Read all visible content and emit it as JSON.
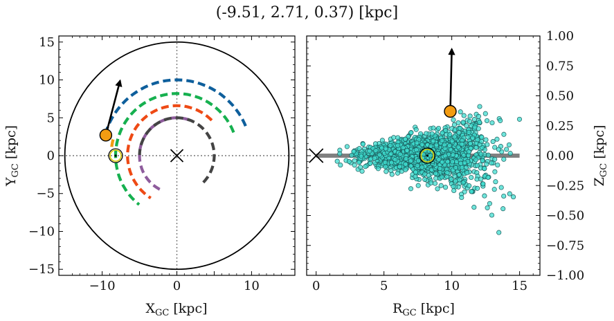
{
  "figure_title": "(-9.51, 2.71, 0.37) [kpc]",
  "chart_data": [
    {
      "type": "scatter",
      "panel": "left",
      "xlabel_main": "X",
      "xlabel_sub": "GC",
      "xlabel_unit": " [kpc]",
      "ylabel_main": "Y",
      "ylabel_sub": "GC",
      "ylabel_unit": " [kpc]",
      "xlim": [
        -15.8,
        15.8
      ],
      "ylim": [
        -15.8,
        15.8
      ],
      "xticks": [
        -10,
        -5,
        0,
        5,
        10
      ],
      "xtick_labels": [
        "−10",
        "",
        "0",
        "",
        "10"
      ],
      "yticks": [
        -15,
        -10,
        -5,
        0,
        5,
        10,
        15
      ],
      "ytick_labels": [
        "−15",
        "−10",
        "−5",
        "0",
        "5",
        "10",
        "15"
      ],
      "boundary_circle_radius": 15,
      "arms": [
        {
          "color": "#0e5f9c",
          "radius": 10.0,
          "start_deg": 23,
          "end_deg": 166
        },
        {
          "color": "#16b04f",
          "radius": 8.2,
          "start_deg": 22,
          "end_deg": 232
        },
        {
          "color": "#ee4a15",
          "radius": 6.6,
          "start_deg": 45,
          "end_deg": 238
        },
        {
          "color": "#8e5c9c",
          "radius": 5.0,
          "start_deg": 70,
          "end_deg": 249
        },
        {
          "color": "#444444",
          "radius": 5.0,
          "start_deg": 315,
          "end_deg": 179
        },
        {
          "color": "#f39c12",
          "radius": 8.8,
          "start_deg": 166,
          "end_deg": 176
        }
      ],
      "galactic_center": {
        "x": 0,
        "y": 0,
        "marker": "x"
      },
      "sun": {
        "x": -8.2,
        "y": 0.0,
        "marker": "sun-symbol"
      },
      "object": {
        "x": -9.51,
        "y": 2.71,
        "color": "#f39c12"
      },
      "velocity_arrow": {
        "from": [
          -9.51,
          2.71
        ],
        "to": [
          -7.6,
          9.9
        ]
      }
    },
    {
      "type": "scatter",
      "panel": "right",
      "xlabel_main": "R",
      "xlabel_sub": "GC",
      "xlabel_unit": " [kpc]",
      "ylabel_main": "Z",
      "ylabel_sub": "GC",
      "ylabel_unit": " [kpc]",
      "xlim": [
        -0.7,
        16.5
      ],
      "ylim": [
        -1.0,
        1.0
      ],
      "xticks": [
        0,
        5,
        10,
        15
      ],
      "xtick_labels": [
        "0",
        "5",
        "10",
        "15"
      ],
      "yticks": [
        -1.0,
        -0.75,
        -0.5,
        -0.25,
        0.0,
        0.25,
        0.5,
        0.75,
        1.0
      ],
      "ytick_labels": [
        "−1.00",
        "−0.75",
        "−0.50",
        "−0.25",
        "0.00",
        "0.25",
        "0.50",
        "0.75",
        "1.00"
      ],
      "disk_line": {
        "x0": 0,
        "x1": 15,
        "z": 0
      },
      "star_cloud": {
        "color": "#3fdccf",
        "edge": "#1a5a5a",
        "count": 1800,
        "r_mean": 8.3,
        "r_std": 2.3,
        "r_min": 1.5,
        "r_max": 15.5
      },
      "galactic_center": {
        "r": 0,
        "z": 0,
        "marker": "x"
      },
      "sun": {
        "r": 8.2,
        "z": 0.0,
        "marker": "sun-symbol"
      },
      "object": {
        "r": 9.89,
        "z": 0.37,
        "color": "#f39c12"
      },
      "velocity_arrow": {
        "from": [
          9.89,
          0.37
        ],
        "to": [
          10.0,
          0.89
        ]
      }
    }
  ]
}
